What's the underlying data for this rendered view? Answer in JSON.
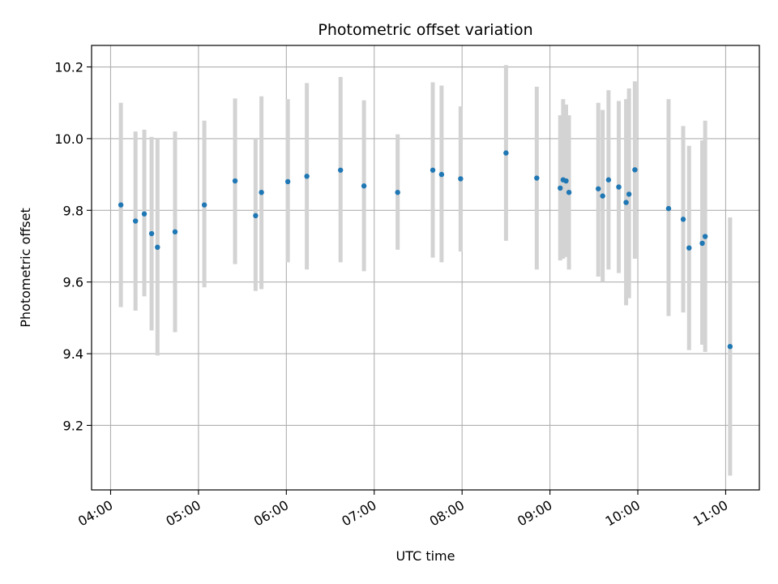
{
  "chart_data": {
    "type": "scatter",
    "title": "Photometric offset variation",
    "xlabel": "UTC time",
    "ylabel": "Photometric offset",
    "x_ticks": [
      "04:00",
      "05:00",
      "06:00",
      "07:00",
      "08:00",
      "09:00",
      "10:00",
      "11:00"
    ],
    "y_ticks": [
      "9.2",
      "9.4",
      "9.6",
      "9.8",
      "10.0",
      "10.2"
    ],
    "xlim": [
      "03:47",
      "11:23"
    ],
    "ylim": [
      9.02,
      10.26
    ],
    "grid": true,
    "colors": {
      "point": "#1f77b4",
      "errorbar": "#d3d3d3",
      "grid": "#b0b0b0"
    },
    "points": [
      {
        "x": "04:07",
        "y": 9.815,
        "lo": 9.53,
        "hi": 10.1
      },
      {
        "x": "04:17",
        "y": 9.77,
        "lo": 9.52,
        "hi": 10.02
      },
      {
        "x": "04:23",
        "y": 9.79,
        "lo": 9.56,
        "hi": 10.025
      },
      {
        "x": "04:28",
        "y": 9.735,
        "lo": 9.465,
        "hi": 10.005
      },
      {
        "x": "04:32",
        "y": 9.697,
        "lo": 9.395,
        "hi": 10.0
      },
      {
        "x": "04:44",
        "y": 9.74,
        "lo": 9.46,
        "hi": 10.02
      },
      {
        "x": "05:04",
        "y": 9.815,
        "lo": 9.585,
        "hi": 10.05
      },
      {
        "x": "05:25",
        "y": 9.882,
        "lo": 9.65,
        "hi": 10.112
      },
      {
        "x": "05:39",
        "y": 9.785,
        "lo": 9.575,
        "hi": 10.0
      },
      {
        "x": "05:43",
        "y": 9.85,
        "lo": 9.58,
        "hi": 10.118
      },
      {
        "x": "06:01",
        "y": 9.88,
        "lo": 9.655,
        "hi": 10.11
      },
      {
        "x": "06:14",
        "y": 9.895,
        "lo": 9.635,
        "hi": 10.155
      },
      {
        "x": "06:37",
        "y": 9.912,
        "lo": 9.655,
        "hi": 10.172
      },
      {
        "x": "06:53",
        "y": 9.868,
        "lo": 9.63,
        "hi": 10.107
      },
      {
        "x": "07:16",
        "y": 9.85,
        "lo": 9.69,
        "hi": 10.012
      },
      {
        "x": "07:40",
        "y": 9.912,
        "lo": 9.668,
        "hi": 10.157
      },
      {
        "x": "07:46",
        "y": 9.9,
        "lo": 9.655,
        "hi": 10.148
      },
      {
        "x": "07:59",
        "y": 9.888,
        "lo": 9.685,
        "hi": 10.09
      },
      {
        "x": "08:30",
        "y": 9.96,
        "lo": 9.715,
        "hi": 10.205
      },
      {
        "x": "08:51",
        "y": 9.89,
        "lo": 9.635,
        "hi": 10.145
      },
      {
        "x": "09:07",
        "y": 9.862,
        "lo": 9.66,
        "hi": 10.065
      },
      {
        "x": "09:09",
        "y": 9.885,
        "lo": 9.665,
        "hi": 10.11
      },
      {
        "x": "09:11",
        "y": 9.882,
        "lo": 9.67,
        "hi": 10.095
      },
      {
        "x": "09:13",
        "y": 9.85,
        "lo": 9.635,
        "hi": 10.065
      },
      {
        "x": "09:33",
        "y": 9.86,
        "lo": 9.615,
        "hi": 10.1
      },
      {
        "x": "09:36",
        "y": 9.84,
        "lo": 9.6,
        "hi": 10.08
      },
      {
        "x": "09:40",
        "y": 9.885,
        "lo": 9.635,
        "hi": 10.135
      },
      {
        "x": "09:47",
        "y": 9.865,
        "lo": 9.625,
        "hi": 10.105
      },
      {
        "x": "09:52",
        "y": 9.822,
        "lo": 9.535,
        "hi": 10.11
      },
      {
        "x": "09:54",
        "y": 9.845,
        "lo": 9.555,
        "hi": 10.14
      },
      {
        "x": "09:58",
        "y": 9.913,
        "lo": 9.665,
        "hi": 10.16
      },
      {
        "x": "10:21",
        "y": 9.805,
        "lo": 9.505,
        "hi": 10.11
      },
      {
        "x": "10:31",
        "y": 9.775,
        "lo": 9.515,
        "hi": 10.035
      },
      {
        "x": "10:35",
        "y": 9.695,
        "lo": 9.41,
        "hi": 9.98
      },
      {
        "x": "10:44",
        "y": 9.708,
        "lo": 9.425,
        "hi": 9.995
      },
      {
        "x": "10:46",
        "y": 9.727,
        "lo": 9.405,
        "hi": 10.05
      },
      {
        "x": "11:03",
        "y": 9.42,
        "lo": 9.06,
        "hi": 9.78
      }
    ]
  }
}
